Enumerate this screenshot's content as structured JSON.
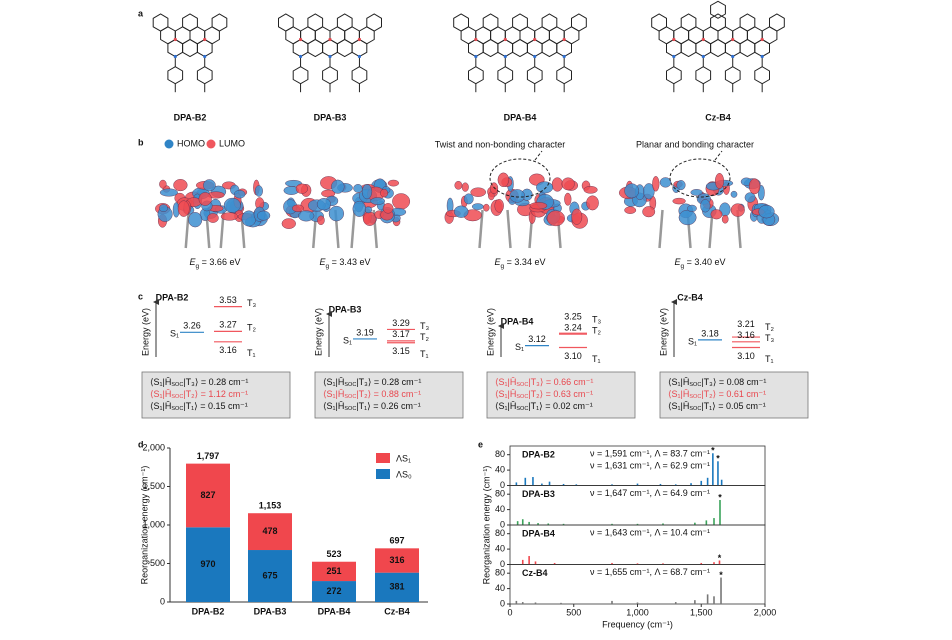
{
  "panel_labels": [
    "a",
    "b",
    "c",
    "d",
    "e"
  ],
  "molecules": [
    "DPA-B2",
    "DPA-B3",
    "DPA-B4",
    "Cz-B4"
  ],
  "orbitals": {
    "legend": [
      "HOMO",
      "LUMO"
    ],
    "annotations": [
      "Twist and non-bonding character",
      "Planar and bonding character"
    ],
    "gaps": [
      {
        "symbol": "E",
        "subscript": "g",
        "text": " = 3.66 eV"
      },
      {
        "symbol": "E",
        "subscript": "g",
        "text": " = 3.43 eV"
      },
      {
        "symbol": "E",
        "subscript": "g",
        "text": " = 3.34 eV"
      },
      {
        "symbol": "E",
        "subscript": "g",
        "text": " = 3.40 eV"
      }
    ]
  },
  "energy_diagrams": {
    "axis_label": "Energy (eV)",
    "diagrams": [
      {
        "name": "DPA-B2",
        "singlet": {
          "name": "S₁",
          "value": "3.26"
        },
        "triplets": [
          {
            "name": "T₃",
            "value": "3.53"
          },
          {
            "name": "T₂",
            "value": "3.27"
          },
          {
            "name": "T₁",
            "value": "3.16"
          }
        ],
        "soc": [
          {
            "pre": "⟨S₁|Ĥ",
            "sub": "SOC",
            "post": "|T₃⟩ = 0.28 cm⁻¹",
            "highlight": false
          },
          {
            "pre": "⟨S₁|Ĥ",
            "sub": "SOC",
            "post": "|T₂⟩ = 1.12 cm⁻¹",
            "highlight": true
          },
          {
            "pre": "⟨S₁|Ĥ",
            "sub": "SOC",
            "post": "|T₁⟩ = 0.15 cm⁻¹",
            "highlight": false
          }
        ]
      },
      {
        "name": "DPA-B3",
        "singlet": {
          "name": "S₁",
          "value": "3.19"
        },
        "triplets": [
          {
            "name": "T₃",
            "value": "3.29"
          },
          {
            "name": "T₂",
            "value": "3.17"
          },
          {
            "name": "T₁",
            "value": "3.15"
          }
        ],
        "soc": [
          {
            "pre": "⟨S₁|Ĥ",
            "sub": "SOC",
            "post": "|T₃⟩ = 0.28 cm⁻¹",
            "highlight": false
          },
          {
            "pre": "⟨S₁|Ĥ",
            "sub": "SOC",
            "post": "|T₂⟩ = 0.88 cm⁻¹",
            "highlight": true
          },
          {
            "pre": "⟨S₁|Ĥ",
            "sub": "SOC",
            "post": "|T₁⟩ = 0.26 cm⁻¹",
            "highlight": false
          }
        ]
      },
      {
        "name": "DPA-B4",
        "singlet": {
          "name": "S₁",
          "value": "3.12"
        },
        "triplets": [
          {
            "name": "T₃",
            "value": "3.25"
          },
          {
            "name": "T₂",
            "value": "3.24"
          },
          {
            "name": "T₁",
            "value": "3.10"
          }
        ],
        "soc": [
          {
            "pre": "⟨S₁|Ĥ",
            "sub": "SOC",
            "post": "|T₃⟩ = 0.66 cm⁻¹",
            "highlight": true
          },
          {
            "pre": "⟨S₁|Ĥ",
            "sub": "SOC",
            "post": "|T₂⟩ = 0.63 cm⁻¹",
            "highlight": true
          },
          {
            "pre": "⟨S₁|Ĥ",
            "sub": "SOC",
            "post": "|T₁⟩ = 0.02 cm⁻¹",
            "highlight": false
          }
        ]
      },
      {
        "name": "Cz-B4",
        "singlet": {
          "name": "S₁",
          "value": "3.18"
        },
        "triplets": [
          {
            "name": "T₂",
            "value": "3.21"
          },
          {
            "name": "T₃",
            "value": "3.16"
          },
          {
            "name": "T₁",
            "value": "3.10"
          }
        ],
        "soc": [
          {
            "pre": "⟨S₁|Ĥ",
            "sub": "SOC",
            "post": "|T₃⟩ = 0.08 cm⁻¹",
            "highlight": false
          },
          {
            "pre": "⟨S₁|Ĥ",
            "sub": "SOC",
            "post": "|T₂⟩ = 0.61 cm⁻¹",
            "highlight": true
          },
          {
            "pre": "⟨S₁|Ĥ",
            "sub": "SOC",
            "post": "|T₁⟩ = 0.05 cm⁻¹",
            "highlight": false
          }
        ]
      }
    ]
  },
  "chart_data": [
    {
      "type": "stacked-bar",
      "ylabel": "Reorganization energy (cm⁻¹)",
      "categories": [
        "DPA-B2",
        "DPA-B3",
        "DPA-B4",
        "Cz-B4"
      ],
      "series": [
        {
          "name": "ΛS₀",
          "color": "#1a78be",
          "values": [
            970,
            675,
            272,
            381
          ]
        },
        {
          "name": "ΛS₁",
          "color": "#f0474d",
          "values": [
            827,
            478,
            251,
            316
          ]
        }
      ],
      "totals": [
        "1,797",
        "1,153",
        "523",
        "697"
      ],
      "ylim": [
        0,
        2000
      ],
      "yticks": [
        0,
        500,
        {
          "value": 1000,
          "label": "1,000"
        },
        {
          "value": 1500,
          "label": "1,500"
        },
        {
          "value": 2000,
          "label": "2,000"
        }
      ],
      "legend": "upper right"
    },
    {
      "type": "stem",
      "xlabel": "Frequency (cm⁻¹)",
      "ylabel": "Reorganization energy (cm⁻¹)",
      "xlim": [
        0,
        2000
      ],
      "xticks": [
        0,
        500,
        {
          "value": 1000,
          "label": "1,000"
        },
        {
          "value": 1500,
          "label": "1,500"
        },
        {
          "value": 2000,
          "label": "2,000"
        }
      ],
      "panels": [
        {
          "name": "DPA-B2",
          "color": "#1a78be",
          "ylim": [
            0,
            100
          ],
          "yticks": [
            0,
            40,
            80
          ],
          "annotations": [
            "ν = 1,591 cm⁻¹, Λ = 83.7 cm⁻¹",
            "ν = 1,631 cm⁻¹, Λ = 62.9 cm⁻¹"
          ],
          "x": [
            50,
            120,
            180,
            250,
            310,
            420,
            520,
            800,
            1000,
            1180,
            1300,
            1420,
            1500,
            1550,
            1591,
            1631,
            1660
          ],
          "values": [
            8,
            20,
            22,
            5,
            10,
            4,
            3,
            3,
            5,
            4,
            3,
            6,
            12,
            20,
            83.7,
            62.9,
            15
          ],
          "star": "*",
          "starred_x": [
            1591,
            1631
          ]
        },
        {
          "name": "DPA-B3",
          "color": "#3aa35a",
          "ylim": [
            0,
            100
          ],
          "yticks": [
            0,
            40,
            80
          ],
          "annotations": [
            "ν = 1,647 cm⁻¹, Λ = 64.9 cm⁻¹"
          ],
          "x": [
            60,
            100,
            150,
            220,
            300,
            420,
            800,
            1000,
            1200,
            1450,
            1540,
            1600,
            1647
          ],
          "values": [
            10,
            15,
            8,
            5,
            4,
            3,
            3,
            3,
            4,
            6,
            12,
            18,
            64.9
          ],
          "star": "*",
          "starred_x": [
            1647
          ]
        },
        {
          "name": "DPA-B4",
          "color": "#f0474d",
          "ylim": [
            0,
            100
          ],
          "yticks": [
            0,
            40,
            80
          ],
          "annotations": [
            "ν = 1,643 cm⁻¹, Λ = 10.4 cm⁻¹"
          ],
          "x": [
            100,
            150,
            200,
            350,
            800,
            1000,
            1200,
            1500,
            1600,
            1643
          ],
          "values": [
            12,
            22,
            8,
            4,
            4,
            3,
            3,
            4,
            6,
            10.4
          ],
          "star": "*",
          "starred_x": [
            1643
          ]
        },
        {
          "name": "Cz-B4",
          "color": "#777777",
          "ylim": [
            0,
            100
          ],
          "yticks": [
            0,
            40,
            80
          ],
          "annotations": [
            "ν = 1,655 cm⁻¹, Λ = 68.7 cm⁻¹"
          ],
          "x": [
            50,
            100,
            200,
            400,
            800,
            1000,
            1300,
            1450,
            1550,
            1600,
            1655
          ],
          "values": [
            8,
            5,
            4,
            3,
            8,
            4,
            5,
            10,
            25,
            20,
            68.7
          ],
          "star": "*",
          "starred_x": [
            1655
          ]
        }
      ]
    }
  ]
}
